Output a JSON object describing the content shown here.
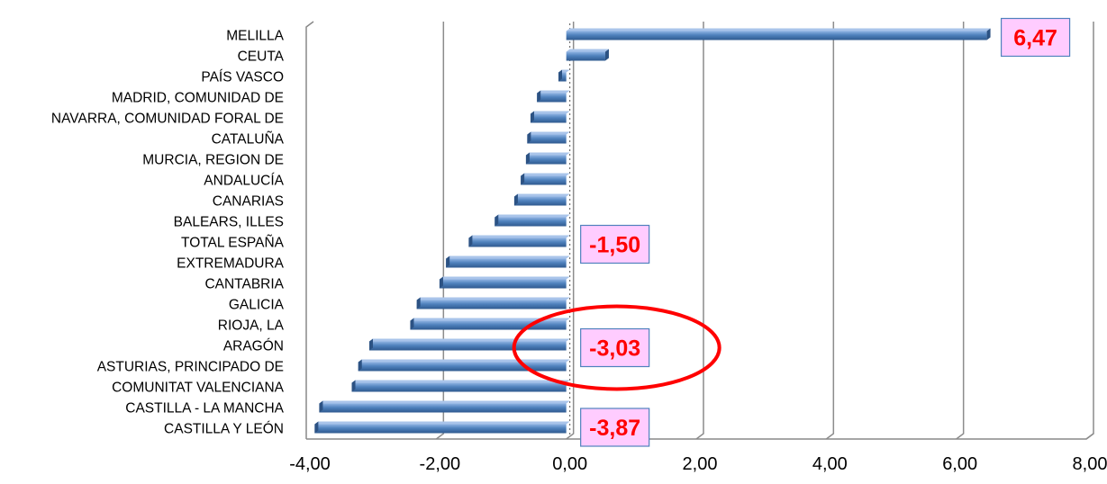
{
  "chart_data": {
    "type": "bar",
    "orientation": "horizontal",
    "title": "",
    "xlabel": "",
    "ylabel": "",
    "xlim": [
      -4,
      8
    ],
    "x_ticks": [
      -4,
      -2,
      0,
      2,
      4,
      6,
      8
    ],
    "x_tick_labels": [
      "-4,00",
      "-2,00",
      "0,00",
      "2,00",
      "4,00",
      "6,00",
      "8,00"
    ],
    "grid": "vertical",
    "bar_color": "#4f81bd",
    "categories": [
      "MELILLA",
      "CEUTA",
      "PAÍS VASCO",
      "MADRID, COMUNIDAD DE",
      "NAVARRA, COMUNIDAD FORAL DE",
      "CATALUÑA",
      "MURCIA, REGION DE",
      "ANDALUCÍA",
      "CANARIAS",
      "BALEARS, ILLES",
      "TOTAL ESPAÑA",
      "EXTREMADURA",
      "CANTABRIA",
      "GALICIA",
      "RIOJA, LA",
      "ARAGÓN",
      "ASTURIAS, PRINCIPADO DE",
      "COMUNITAT VALENCIANA",
      "CASTILLA - LA MANCHA",
      "CASTILLA Y LEÓN"
    ],
    "values": [
      6.47,
      0.6,
      -0.12,
      -0.45,
      -0.55,
      -0.6,
      -0.62,
      -0.7,
      -0.8,
      -1.1,
      -1.5,
      -1.85,
      -1.95,
      -2.3,
      -2.4,
      -3.03,
      -3.2,
      -3.3,
      -3.8,
      -3.87
    ],
    "annotations": [
      {
        "category": "MELILLA",
        "text": "6,47"
      },
      {
        "category": "TOTAL ESPAÑA",
        "text": "-1,50"
      },
      {
        "category": "ARAGÓN",
        "text": "-3,03",
        "highlight": "red-ellipse"
      },
      {
        "category": "CASTILLA Y LEÓN",
        "text": "-3,87"
      }
    ],
    "callout_fill": "#ffccff",
    "callout_border": "#4f81bd",
    "callout_text_color": "#ff0000",
    "highlight_color": "#ff0000"
  }
}
